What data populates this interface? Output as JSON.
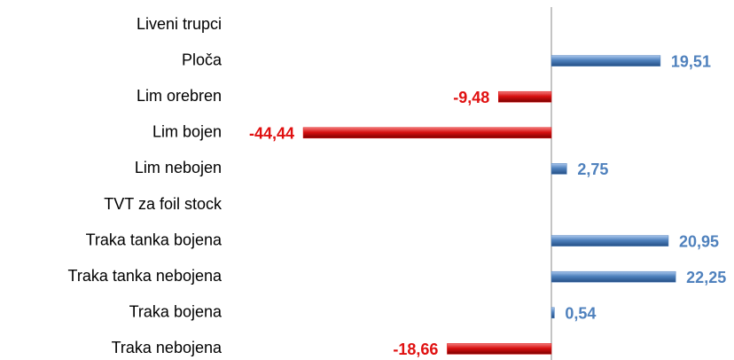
{
  "chart_data": {
    "type": "hbar",
    "categories": [
      "Liveni trupci",
      "Ploča",
      "Lim orebren",
      "Lim bojen",
      "Lim nebojen",
      "TVT za foil stock",
      "Traka tanka bojena",
      "Traka tanka nebojena",
      "Traka bojena",
      "Traka nebojena"
    ],
    "values": [
      null,
      19.51,
      -9.48,
      -44.44,
      2.75,
      null,
      20.95,
      22.25,
      0.54,
      -18.66
    ],
    "value_labels": [
      null,
      "19,51",
      "-9,48",
      "-44,44",
      "2,75",
      null,
      "20,95",
      "22,25",
      "0,54",
      "-18,66"
    ],
    "positive_color": "#4f81bd",
    "negative_color": "#e01010",
    "xlim": [
      -50,
      30
    ]
  }
}
